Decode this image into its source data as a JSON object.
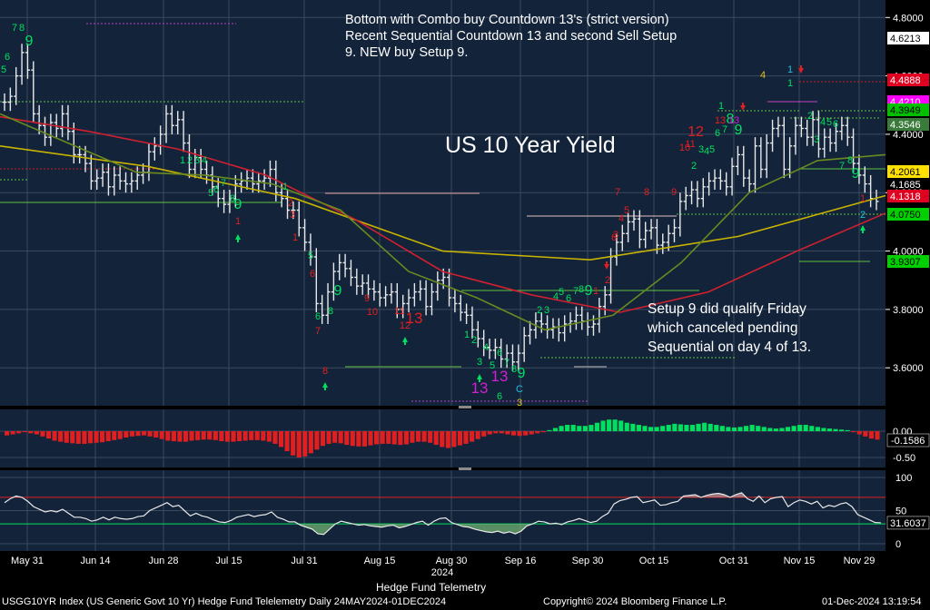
{
  "chart_data": {
    "type": "candlestick",
    "title": "US 10 Year Yield",
    "annotations": [
      "Bottom with Combo buy Countdown 13's (strict version)",
      "Recent Sequential Countdown 13 and second Sell Setup",
      "9.  NEW buy Setup 9.",
      "Setup 9 did qualify Friday",
      "which canceled pending",
      "Sequential on day 4 of 13."
    ],
    "x_tick_labels": [
      "May 31",
      "Jun 14",
      "Jun 28",
      "Jul 15",
      "Jul 31",
      "Aug 15",
      "Aug 30",
      "Sep 16",
      "Sep 30",
      "Oct 15",
      "Oct 31",
      "Nov 15",
      "Nov 29"
    ],
    "x_year_label": "2024",
    "y_ticks": [
      "4.8000",
      "4.6000",
      "4.4000",
      "4.2000",
      "4.0000",
      "3.8000",
      "3.6000"
    ],
    "ylim": [
      3.47,
      4.86
    ],
    "price_close_series": [
      4.51,
      4.53,
      4.6,
      4.68,
      4.62,
      4.47,
      4.43,
      4.39,
      4.44,
      4.42,
      4.47,
      4.41,
      4.33,
      4.33,
      4.3,
      4.24,
      4.25,
      4.27,
      4.22,
      4.26,
      4.24,
      4.23,
      4.24,
      4.26,
      4.27,
      4.34,
      4.36,
      4.4,
      4.47,
      4.43,
      4.45,
      4.37,
      4.28,
      4.32,
      4.28,
      4.26,
      4.22,
      4.18,
      4.16,
      4.18,
      4.23,
      4.24,
      4.25,
      4.23,
      4.24,
      4.25,
      4.28,
      4.2,
      4.18,
      4.14,
      4.14,
      4.08,
      4.03,
      3.98,
      3.82,
      3.78,
      3.86,
      3.93,
      3.96,
      3.94,
      3.91,
      3.88,
      3.89,
      3.87,
      3.86,
      3.84,
      3.85,
      3.86,
      3.8,
      3.82,
      3.84,
      3.86,
      3.87,
      3.81,
      3.86,
      3.9,
      3.91,
      3.84,
      3.82,
      3.79,
      3.78,
      3.73,
      3.7,
      3.67,
      3.66,
      3.67,
      3.63,
      3.65,
      3.62,
      3.65,
      3.71,
      3.73,
      3.76,
      3.75,
      3.73,
      3.74,
      3.72,
      3.75,
      3.76,
      3.78,
      3.76,
      3.74,
      3.75,
      3.81,
      3.85,
      3.98,
      4.03,
      4.06,
      4.1,
      4.11,
      4.04,
      4.07,
      4.08,
      4.02,
      4.03,
      4.06,
      4.08,
      4.17,
      4.19,
      4.21,
      4.18,
      4.22,
      4.24,
      4.25,
      4.24,
      4.22,
      4.29,
      4.33,
      4.25,
      4.23,
      4.36,
      4.28,
      4.37,
      4.42,
      4.43,
      4.28,
      4.36,
      4.43,
      4.42,
      4.39,
      4.45,
      4.35,
      4.39,
      4.37,
      4.41,
      4.43,
      4.39,
      4.3,
      4.26,
      4.23,
      4.18,
      4.17
    ],
    "ma_lines": [
      {
        "color": "#c8b400",
        "values": [
          4.36,
          4.29,
          4.18,
          4.0,
          3.97,
          4.05,
          4.19
        ]
      },
      {
        "color": "#d02030",
        "values": [
          4.46,
          4.41,
          4.35,
          4.26,
          4.11,
          3.93,
          3.85,
          3.79,
          3.86,
          4.0,
          4.13
        ]
      },
      {
        "color": "#6a8a20",
        "values": [
          4.47,
          4.37,
          4.27,
          4.26,
          4.23,
          4.14,
          3.93,
          3.84,
          3.73,
          3.78,
          3.96,
          4.2,
          4.31,
          4.33
        ]
      }
    ],
    "right_axis_labels": [
      {
        "text": "4.6213",
        "bg": "#ffffff",
        "fg": "#000000"
      },
      {
        "text": "4.4888",
        "bg": "#e00020",
        "fg": "#ffffff"
      },
      {
        "text": "4.4210",
        "bg": "#ff00ff",
        "fg": "#ffffff"
      },
      {
        "text": "4.3949",
        "bg": "#00c000",
        "fg": "#000000"
      },
      {
        "text": "4.3546",
        "bg": "#3a7a3a",
        "fg": "#ffffff"
      },
      {
        "text": "4.2061",
        "bg": "#ffe000",
        "fg": "#000000"
      },
      {
        "text": "4.1685",
        "bg": "#000000",
        "fg": "#ffffff"
      },
      {
        "text": "4.1318",
        "bg": "#e00020",
        "fg": "#ffffff"
      },
      {
        "text": "4.0750",
        "bg": "#00d000",
        "fg": "#000000"
      },
      {
        "text": "3.9307",
        "bg": "#00d000",
        "fg": "#000000"
      }
    ],
    "count_labels": [
      {
        "text": "7",
        "color": "#00e060"
      },
      {
        "text": "8",
        "color": "#00e060"
      },
      {
        "text": "9",
        "color": "#00e060"
      },
      {
        "text": "6",
        "color": "#00e060"
      },
      {
        "text": "5",
        "color": "#00e060"
      },
      {
        "text": "1",
        "color": "#00e060"
      },
      {
        "text": "2",
        "color": "#00e060"
      },
      {
        "text": "3",
        "color": "#00e060"
      },
      {
        "text": "4",
        "color": "#00e060"
      },
      {
        "text": "5",
        "color": "#00e060"
      },
      {
        "text": "6",
        "color": "#00e060"
      },
      {
        "text": "7",
        "color": "#00e060"
      },
      {
        "text": "8",
        "color": "#00e060"
      },
      {
        "text": "9",
        "color": "#00e060"
      },
      {
        "text": "1",
        "color": "#e02020"
      },
      {
        "text": "1",
        "color": "#00e060"
      },
      {
        "text": "2",
        "color": "#e02020"
      },
      {
        "text": "3",
        "color": "#e02020"
      },
      {
        "text": "5",
        "color": "#00e060"
      },
      {
        "text": "6",
        "color": "#e02020"
      },
      {
        "text": "8",
        "color": "#00e060"
      },
      {
        "text": "9",
        "color": "#00e060"
      },
      {
        "text": "7",
        "color": "#e02020"
      },
      {
        "text": "8",
        "color": "#e02020"
      },
      {
        "text": "6",
        "color": "#00e060"
      },
      {
        "text": "9",
        "color": "#e02020"
      },
      {
        "text": "10",
        "color": "#e02020"
      },
      {
        "text": "11",
        "color": "#e02020"
      },
      {
        "text": "12",
        "color": "#e02020"
      },
      {
        "text": "13",
        "color": "#e02020"
      },
      {
        "text": "1",
        "color": "#e02020"
      },
      {
        "text": "1",
        "color": "#00e060"
      },
      {
        "text": "2",
        "color": "#00e060"
      },
      {
        "text": "3",
        "color": "#00e060"
      },
      {
        "text": "4",
        "color": "#00e060"
      },
      {
        "text": "5",
        "color": "#00e060"
      },
      {
        "text": "6",
        "color": "#00e060"
      },
      {
        "text": "7",
        "color": "#00e060"
      },
      {
        "text": "8",
        "color": "#00e060"
      },
      {
        "text": "9",
        "color": "#00e060"
      },
      {
        "text": "13",
        "color": "#d020d0"
      },
      {
        "text": "13",
        "color": "#d020d0"
      },
      {
        "text": "6",
        "color": "#00e060"
      },
      {
        "text": "C",
        "color": "#20c0e0"
      },
      {
        "text": "3",
        "color": "#e0c020"
      },
      {
        "text": "2",
        "color": "#00e060"
      },
      {
        "text": "3",
        "color": "#00e060"
      },
      {
        "text": "4",
        "color": "#00e060"
      },
      {
        "text": "5",
        "color": "#00e060"
      },
      {
        "text": "6",
        "color": "#00e060"
      },
      {
        "text": "7",
        "color": "#00e060"
      },
      {
        "text": "8",
        "color": "#00e060"
      },
      {
        "text": "9",
        "color": "#00e060"
      },
      {
        "text": "1",
        "color": "#e02020"
      },
      {
        "text": "2",
        "color": "#e02020"
      },
      {
        "text": "3",
        "color": "#e02020"
      },
      {
        "text": "4",
        "color": "#e02020"
      },
      {
        "text": "5",
        "color": "#e02020"
      },
      {
        "text": "6",
        "color": "#e02020"
      },
      {
        "text": "7",
        "color": "#e02020"
      },
      {
        "text": "8",
        "color": "#e02020"
      },
      {
        "text": "9",
        "color": "#e02020"
      },
      {
        "text": "10",
        "color": "#e02020"
      },
      {
        "text": "11",
        "color": "#e02020"
      },
      {
        "text": "12",
        "color": "#e02020"
      },
      {
        "text": "13",
        "color": "#e02020"
      },
      {
        "text": "1",
        "color": "#00e060"
      },
      {
        "text": "2",
        "color": "#00e060"
      },
      {
        "text": "3",
        "color": "#00e060"
      },
      {
        "text": "4",
        "color": "#00e060"
      },
      {
        "text": "5",
        "color": "#00e060"
      },
      {
        "text": "6",
        "color": "#00e060"
      },
      {
        "text": "7",
        "color": "#00e060"
      },
      {
        "text": "8",
        "color": "#00e060"
      },
      {
        "text": "9",
        "color": "#00e060"
      },
      {
        "text": "13",
        "color": "#d020d0"
      },
      {
        "text": "4",
        "color": "#e0c020"
      },
      {
        "text": "1",
        "color": "#20c0e0"
      },
      {
        "text": "1",
        "color": "#00e060"
      },
      {
        "text": "2",
        "color": "#00e060"
      },
      {
        "text": "3",
        "color": "#00e060"
      },
      {
        "text": "4",
        "color": "#00e060"
      },
      {
        "text": "5",
        "color": "#00e060"
      },
      {
        "text": "6",
        "color": "#00e060"
      },
      {
        "text": "7",
        "color": "#00e060"
      },
      {
        "text": "8",
        "color": "#00e060"
      },
      {
        "text": "9",
        "color": "#00e060"
      },
      {
        "text": "1",
        "color": "#e02020"
      },
      {
        "text": "2",
        "color": "#20c0e0"
      }
    ],
    "osc_axis_labels": [
      "0.00",
      "-0.50"
    ],
    "osc_current": "-0.1586",
    "osc_values": [
      -0.08,
      -0.06,
      -0.04,
      -0.02,
      -0.04,
      -0.06,
      -0.1,
      -0.14,
      -0.18,
      -0.2,
      -0.22,
      -0.23,
      -0.24,
      -0.24,
      -0.23,
      -0.22,
      -0.21,
      -0.19,
      -0.17,
      -0.15,
      -0.12,
      -0.1,
      -0.09,
      -0.08,
      -0.1,
      -0.12,
      -0.15,
      -0.18,
      -0.19,
      -0.2,
      -0.2,
      -0.18,
      -0.17,
      -0.16,
      -0.16,
      -0.17,
      -0.19,
      -0.2,
      -0.2,
      -0.19,
      -0.18,
      -0.17,
      -0.17,
      -0.18,
      -0.2,
      -0.24,
      -0.3,
      -0.38,
      -0.46,
      -0.5,
      -0.48,
      -0.42,
      -0.35,
      -0.28,
      -0.24,
      -0.22,
      -0.23,
      -0.26,
      -0.28,
      -0.29,
      -0.29,
      -0.27,
      -0.25,
      -0.24,
      -0.24,
      -0.25,
      -0.26,
      -0.25,
      -0.22,
      -0.2,
      -0.2,
      -0.22,
      -0.26,
      -0.3,
      -0.32,
      -0.3,
      -0.27,
      -0.24,
      -0.2,
      -0.15,
      -0.1,
      -0.06,
      -0.04,
      -0.04,
      -0.06,
      -0.08,
      -0.09,
      -0.08,
      -0.06,
      -0.04,
      -0.02,
      0.02,
      0.06,
      0.1,
      0.12,
      0.12,
      0.1,
      0.1,
      0.12,
      0.16,
      0.2,
      0.22,
      0.22,
      0.2,
      0.16,
      0.14,
      0.12,
      0.1,
      0.08,
      0.08,
      0.1,
      0.12,
      0.14,
      0.13,
      0.12,
      0.12,
      0.14,
      0.16,
      0.14,
      0.12,
      0.1,
      0.08,
      0.07,
      0.08,
      0.1,
      0.12,
      0.1,
      0.08,
      0.06,
      0.05,
      0.06,
      0.08,
      0.1,
      0.12,
      0.12,
      0.1,
      0.08,
      0.06,
      0.05,
      0.04,
      0.03,
      0.02,
      -0.02,
      -0.06,
      -0.1,
      -0.14,
      -0.16
    ],
    "rsi_axis_labels": [
      "100",
      "50",
      "0"
    ],
    "rsi_current": "31.6037",
    "rsi_levels": [
      70,
      30
    ],
    "rsi_values": [
      62,
      68,
      72,
      70,
      64,
      56,
      52,
      48,
      50,
      48,
      52,
      46,
      40,
      40,
      38,
      34,
      36,
      40,
      36,
      40,
      38,
      37,
      38,
      41,
      42,
      50,
      54,
      58,
      62,
      56,
      58,
      50,
      42,
      46,
      42,
      40,
      36,
      33,
      32,
      35,
      40,
      42,
      44,
      41,
      43,
      44,
      48,
      40,
      37,
      33,
      33,
      28,
      25,
      22,
      15,
      14,
      22,
      30,
      34,
      32,
      30,
      28,
      29,
      27,
      26,
      25,
      27,
      28,
      24,
      26,
      29,
      32,
      34,
      28,
      34,
      38,
      39,
      32,
      29,
      26,
      25,
      22,
      20,
      18,
      17,
      19,
      16,
      18,
      15,
      19,
      27,
      30,
      34,
      33,
      30,
      31,
      29,
      33,
      35,
      38,
      35,
      32,
      34,
      41,
      46,
      60,
      65,
      67,
      70,
      71,
      62,
      64,
      66,
      58,
      59,
      62,
      64,
      72,
      73,
      74,
      70,
      73,
      75,
      76,
      74,
      70,
      74,
      77,
      68,
      64,
      72,
      62,
      68,
      70,
      71,
      56,
      62,
      66,
      64,
      60,
      64,
      54,
      58,
      56,
      60,
      62,
      56,
      44,
      40,
      36,
      32,
      31.6
    ]
  },
  "footer": {
    "title": "Hedge Fund Telemetry",
    "left": "USGG10YR Index (US Generic Govt 10 Yr) Hedge Fund Telelemetry  Daily 24MAY2024-01DEC2024",
    "center": "Copyright© 2024 Bloomberg Finance L.P.",
    "right": "01-Dec-2024 13:19:54"
  },
  "colors": {
    "panel_bg": "#13233a",
    "grid": "#3c4a5e",
    "bullish": "#00e060",
    "bearish": "#e02020",
    "magenta": "#d020d0"
  }
}
